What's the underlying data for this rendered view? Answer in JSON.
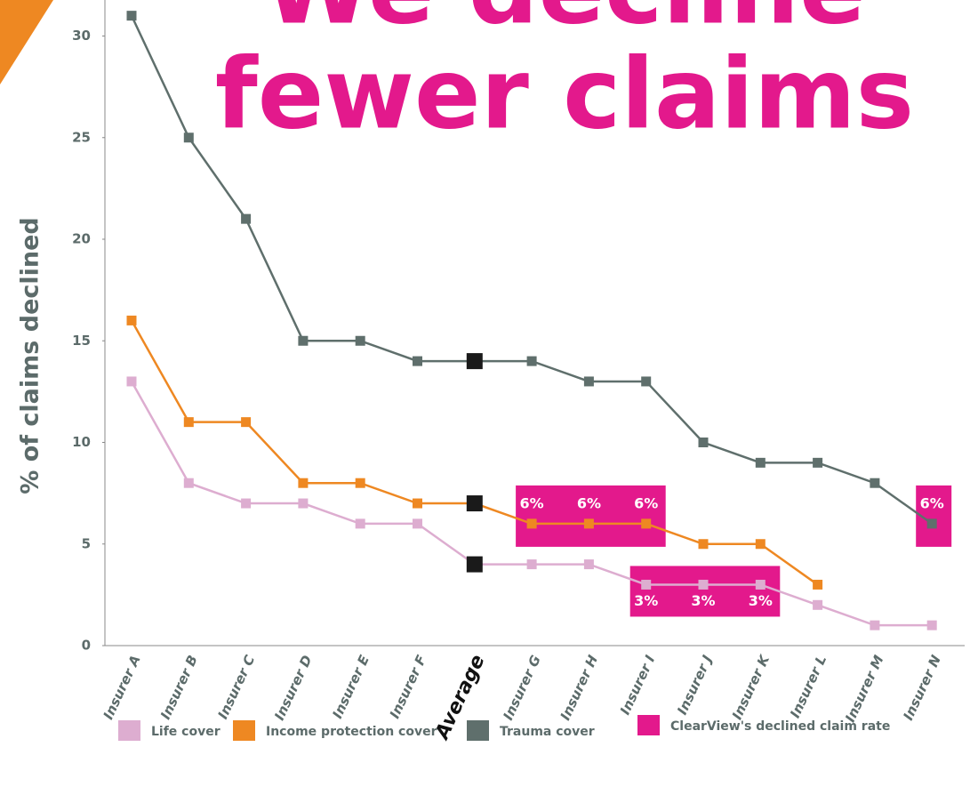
{
  "chart_data": {
    "type": "line",
    "title_lines": [
      "We decline",
      "fewer claims"
    ],
    "ylabel": "% of claims declined",
    "categories": [
      "Insurer A",
      "Insurer B",
      "Insurer C",
      "Insurer D",
      "Insurer E",
      "Insurer F",
      "Average",
      "Insurer G",
      "Insurer H",
      "Insurer I",
      "Insurer J",
      "Insurer K",
      "Insurer L",
      "Insurer M",
      "Insurer N"
    ],
    "highlight_category": "Average",
    "series": [
      {
        "name": "Life cover",
        "color": "#ddadd0",
        "values": [
          13,
          8,
          7,
          7,
          6,
          6,
          4,
          4,
          4,
          3,
          3,
          3,
          2,
          1,
          1
        ]
      },
      {
        "name": "Income protection cover",
        "color": "#ee8822",
        "values": [
          16,
          11,
          11,
          8,
          8,
          7,
          7,
          6,
          6,
          6,
          5,
          5,
          3,
          null,
          null
        ]
      },
      {
        "name": "Trauma cover",
        "color": "#5f6f6c",
        "values": [
          31,
          25,
          21,
          15,
          15,
          14,
          14,
          14,
          13,
          13,
          10,
          9,
          9,
          8,
          6
        ]
      }
    ],
    "highlight_name": "ClearView's declined claim rate",
    "highlight_color": "#e3198c",
    "highlights": [
      {
        "label": "6%",
        "series": "Income protection cover",
        "categories": [
          "Insurer G",
          "Insurer H",
          "Insurer I"
        ]
      },
      {
        "label": "6%",
        "series": "Trauma cover",
        "categories": [
          "Insurer N"
        ]
      },
      {
        "label": "3%",
        "series": "Life cover",
        "categories": [
          "Insurer I",
          "Insurer J",
          "Insurer K"
        ]
      }
    ],
    "ylim": [
      0,
      32
    ],
    "yticks": [
      0,
      5,
      10,
      15,
      20,
      25,
      30
    ]
  }
}
